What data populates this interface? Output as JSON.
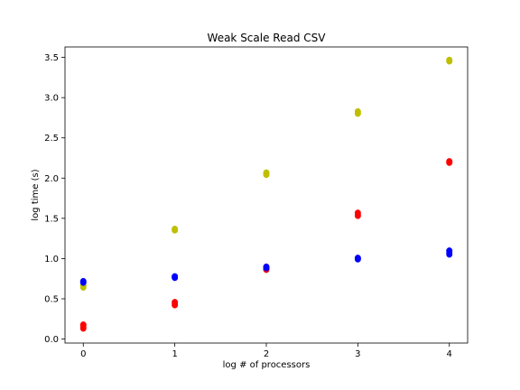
{
  "chart_data": {
    "type": "scatter",
    "title": "Weak Scale Read CSV",
    "xlabel": "log # of processors",
    "ylabel": "log time (s)",
    "xlim": [
      -0.2,
      4.2
    ],
    "ylim": [
      -0.05,
      3.63
    ],
    "xticks": [
      0,
      1,
      2,
      3,
      4
    ],
    "xtick_labels": [
      "0",
      "1",
      "2",
      "3",
      "4"
    ],
    "yticks": [
      0.0,
      0.5,
      1.0,
      1.5,
      2.0,
      2.5,
      3.0,
      3.5
    ],
    "ytick_labels": [
      "0.0",
      "0.5",
      "1.0",
      "1.5",
      "2.0",
      "2.5",
      "3.0",
      "3.5"
    ],
    "grid": false,
    "series": [
      {
        "color": "#bfbf00",
        "points": [
          [
            0,
            0.64
          ],
          [
            0,
            0.66
          ],
          [
            0,
            0.67
          ],
          [
            1,
            1.35
          ],
          [
            1,
            1.36
          ],
          [
            1,
            1.37
          ],
          [
            2,
            2.04
          ],
          [
            2,
            2.05
          ],
          [
            2,
            2.07
          ],
          [
            3,
            2.8
          ],
          [
            3,
            2.81
          ],
          [
            3,
            2.83
          ],
          [
            4,
            3.45
          ],
          [
            4,
            3.46
          ],
          [
            4,
            3.47
          ]
        ]
      },
      {
        "color": "#ff0000",
        "points": [
          [
            0,
            0.13
          ],
          [
            0,
            0.15
          ],
          [
            0,
            0.17
          ],
          [
            0,
            0.18
          ],
          [
            1,
            0.42
          ],
          [
            1,
            0.44
          ],
          [
            1,
            0.46
          ],
          [
            2,
            0.86
          ],
          [
            2,
            0.87
          ],
          [
            2,
            0.88
          ],
          [
            3,
            1.53
          ],
          [
            3,
            1.55
          ],
          [
            3,
            1.57
          ],
          [
            4,
            2.19
          ],
          [
            4,
            2.2
          ],
          [
            4,
            2.21
          ]
        ]
      },
      {
        "color": "#0000ff",
        "points": [
          [
            0,
            0.7
          ],
          [
            0,
            0.71
          ],
          [
            0,
            0.72
          ],
          [
            1,
            0.76
          ],
          [
            1,
            0.77
          ],
          [
            1,
            0.78
          ],
          [
            2,
            0.88
          ],
          [
            2,
            0.89
          ],
          [
            2,
            0.9
          ],
          [
            3,
            0.99
          ],
          [
            3,
            1.0
          ],
          [
            3,
            1.01
          ],
          [
            4,
            1.05
          ],
          [
            4,
            1.07
          ],
          [
            4,
            1.09
          ],
          [
            4,
            1.1
          ]
        ]
      }
    ]
  }
}
